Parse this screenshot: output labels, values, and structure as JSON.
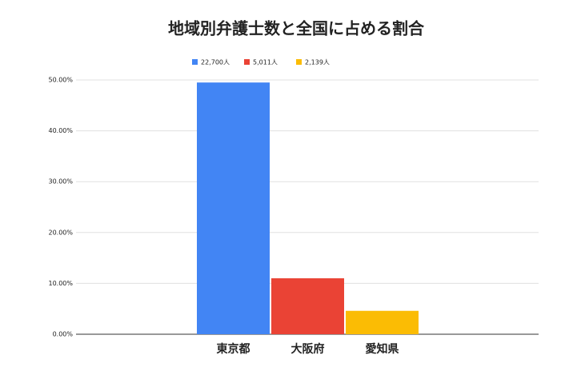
{
  "chart_data": {
    "type": "bar",
    "title": "地域別弁護士数と全国に占める割合",
    "categories": [
      "東京都",
      "大阪府",
      "愛知県"
    ],
    "series": [
      {
        "name": "22,700人",
        "color": "#4285f4",
        "values": [
          49.5,
          null,
          null
        ]
      },
      {
        "name": "5,011人",
        "color": "#ea4335",
        "values": [
          null,
          11.0,
          null
        ]
      },
      {
        "name": "2,139人",
        "color": "#fbbc04",
        "values": [
          null,
          null,
          4.6
        ]
      }
    ],
    "ylim": [
      0,
      50
    ],
    "yticks": [
      {
        "value": 0,
        "label": "0.00%"
      },
      {
        "value": 10,
        "label": "10.00%"
      },
      {
        "value": 20,
        "label": "20.00%"
      },
      {
        "value": 30,
        "label": "30.00%"
      },
      {
        "value": 40,
        "label": "40.00%"
      },
      {
        "value": 50,
        "label": "50.00%"
      }
    ],
    "grid": true,
    "legend": "top"
  }
}
